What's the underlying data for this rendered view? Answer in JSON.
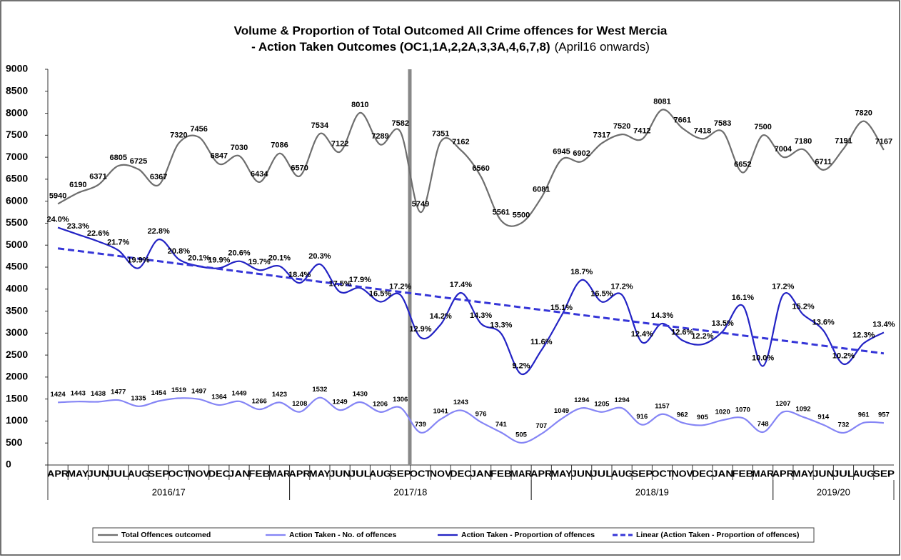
{
  "chart_data": {
    "type": "line",
    "title": "Volume & Proportion of Total Outcomed All Crime offences for West Mercia",
    "subtitle": "- Action Taken Outcomes (OC1,1A,2,2A,3,3A,4,6,7,8)",
    "subtitle_note": "(April16 onwards)",
    "categories": [
      "APR",
      "MAY",
      "JUN",
      "JUL",
      "AUG",
      "SEP",
      "OCT",
      "NOV",
      "DEC",
      "JAN",
      "FEB",
      "MAR",
      "APR",
      "MAY",
      "JUN",
      "JUL",
      "AUG",
      "SEP",
      "OCT",
      "NOV",
      "DEC",
      "JAN",
      "FEB",
      "MAR",
      "APR",
      "MAY",
      "JUN",
      "JUL",
      "AUG",
      "SEP",
      "OCT",
      "NOV",
      "DEC",
      "JAN",
      "FEB",
      "MAR",
      "APR",
      "MAY",
      "JUN",
      "JUL",
      "AUG",
      "SEP"
    ],
    "category_groups": [
      {
        "name": "2016/17",
        "count": 12
      },
      {
        "name": "2017/18",
        "count": 12
      },
      {
        "name": "2018/19",
        "count": 12
      },
      {
        "name": "2019/20",
        "count": 6
      }
    ],
    "ylim": [
      0,
      9000
    ],
    "yticks": [
      0,
      500,
      1000,
      1500,
      2000,
      2500,
      3000,
      3500,
      4000,
      4500,
      5000,
      5500,
      6000,
      6500,
      7000,
      7500,
      8000,
      8500,
      9000
    ],
    "y2lim": [
      0,
      40
    ],
    "grid": false,
    "legend": "bottom",
    "series": [
      {
        "name": "Total Offences outcomed",
        "color": "#6e6e6e",
        "values": [
          5940,
          6190,
          6371,
          6805,
          6725,
          6367,
          7320,
          7456,
          6847,
          7030,
          6434,
          7086,
          6570,
          7534,
          7122,
          8010,
          7289,
          7582,
          5749,
          7351,
          7162,
          6560,
          5561,
          5500,
          6081,
          6945,
          6902,
          7317,
          7520,
          7412,
          8081,
          7661,
          7418,
          7583,
          6652,
          7500,
          7004,
          7180,
          6711,
          7191,
          7820,
          7167
        ]
      },
      {
        "name": "Action Taken - No. of offences",
        "color": "#8585f5",
        "values": [
          1424,
          1443,
          1438,
          1477,
          1335,
          1454,
          1519,
          1497,
          1364,
          1449,
          1266,
          1423,
          1208,
          1532,
          1249,
          1430,
          1206,
          1306,
          739,
          1041,
          1243,
          976,
          741,
          505,
          707,
          1049,
          1294,
          1205,
          1294,
          916,
          1157,
          962,
          905,
          1020,
          1070,
          748,
          1207,
          1092,
          914,
          732,
          961,
          957
        ]
      },
      {
        "name": "Action Taken  - Proportion of offences",
        "color": "#2323c4",
        "axis": "y2",
        "values": [
          24.0,
          23.3,
          22.6,
          21.7,
          19.9,
          22.8,
          20.8,
          20.1,
          19.9,
          20.6,
          19.7,
          20.1,
          18.4,
          20.3,
          17.5,
          17.9,
          16.5,
          17.2,
          12.9,
          14.2,
          17.4,
          14.3,
          13.3,
          9.2,
          11.6,
          15.1,
          18.7,
          16.5,
          17.2,
          12.4,
          14.3,
          12.6,
          12.2,
          13.5,
          16.1,
          10.0,
          17.2,
          15.2,
          13.6,
          10.2,
          12.3,
          13.4
        ],
        "value_labels": [
          "24.0%",
          "23.3%",
          "22.6%",
          "21.7%",
          "19.9%",
          "22.8%",
          "20.8%",
          "20.1%",
          "19.9%",
          "20.6%",
          "19.7%",
          "20.1%",
          "18.4%",
          "20.3%",
          "17.5%",
          "17.9%",
          "16.5%",
          "17.2%",
          "12.9%",
          "14.2%",
          "17.4%",
          "14.3%",
          "13.3%",
          "9.2%",
          "11.6%",
          "15.1%",
          "18.7%",
          "16.5%",
          "17.2%",
          "12.4%",
          "14.3%",
          "12.6%",
          "12.2%",
          "13.5%",
          "16.1%",
          "10.0%",
          "17.2%",
          "15.2%",
          "13.6%",
          "10.2%",
          "12.3%",
          "13.4%"
        ],
        "trendline": {
          "name": "Linear (Action Taken  - Proportion of offences)",
          "type": "linear",
          "color": "#3636d8"
        }
      }
    ]
  }
}
